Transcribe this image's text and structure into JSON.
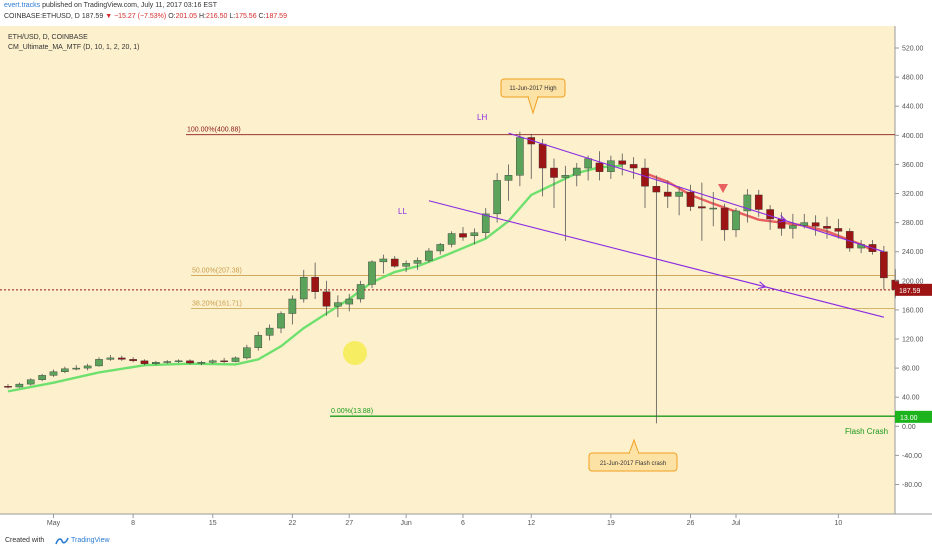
{
  "header": {
    "author": "evert.tracks",
    "published_text": "published on TradingView.com, July 11, 2017 03:16 EST",
    "symbol": "COINBASE:ETHUSD, D",
    "last": "187.59",
    "change": "−15.27 (−7.53%)",
    "o_label": "O:",
    "o": "201.05",
    "h_label": "H:",
    "h": "216.50",
    "l_label": "L:",
    "l": "175.56",
    "c_label": "C:",
    "c": "187.59"
  },
  "legend": {
    "line1": "ETH/USD, D, COINBASE",
    "line2": "CM_Ultimate_MA_MTF (D, 10, 1, 2, 20, 1)"
  },
  "colors": {
    "background": "#fdf0cd",
    "up": "#5ba35b",
    "down": "#9c1414",
    "ma_up": "#6ee06e",
    "ma_down": "#e86060",
    "channel": "#8a2be2",
    "fib_100": "#8b1a1a",
    "fib_50": "#c8a050",
    "fib_0": "#1a9a1a",
    "price_line": "#9c1414"
  },
  "annotations": {
    "high_callout": "11-Jun-2017 High",
    "crash_callout": "21-Jun-2017 Flash crash",
    "lh": "LH",
    "ll": "LL",
    "flash_crash": "Flash Crash"
  },
  "footer": {
    "created": "Created with",
    "brand": "TradingView"
  },
  "chart_data": {
    "type": "candlestick",
    "x_axis": {
      "ticks": [
        {
          "i": 4,
          "label": "May"
        },
        {
          "i": 11,
          "label": "8"
        },
        {
          "i": 18,
          "label": "15"
        },
        {
          "i": 25,
          "label": "22"
        },
        {
          "i": 30,
          "label": "27"
        },
        {
          "i": 35,
          "label": "Jun"
        },
        {
          "i": 40,
          "label": "6"
        },
        {
          "i": 46,
          "label": "12"
        },
        {
          "i": 53,
          "label": "19"
        },
        {
          "i": 60,
          "label": "26"
        },
        {
          "i": 64,
          "label": "Jul"
        },
        {
          "i": 73,
          "label": "10"
        }
      ]
    },
    "y_axis": {
      "ticks": [
        520,
        480,
        440,
        400,
        360,
        320,
        280,
        240,
        200,
        160,
        120,
        80,
        40,
        0,
        -40,
        -80
      ],
      "labels": [
        "520.00",
        "480.00",
        "440.00",
        "400.00",
        "360.00",
        "320.00",
        "280.00",
        "240.00",
        "200.00",
        "160.00",
        "120.00",
        "80.00",
        "40.00",
        "0.00",
        "-40.00",
        "-80.00"
      ],
      "range": [
        -82,
        550
      ]
    },
    "fib_levels": [
      {
        "label": "100.00%(400.88)",
        "value": 400.88
      },
      {
        "label": "50.00%(207.38)",
        "value": 207.38
      },
      {
        "label": "38.20%(161.71)",
        "value": 161.71
      },
      {
        "label": "0.00%(13.88)",
        "value": 13.88
      }
    ],
    "last_price": {
      "value": 187.59,
      "label": "187.59"
    },
    "flash_crash_level": {
      "value": 13.0,
      "label": "13.00"
    },
    "channel_lines": [
      {
        "name": "upper",
        "from": [
          44,
          403
        ],
        "to": [
          77,
          240
        ]
      },
      {
        "name": "lower",
        "from": [
          37,
          310
        ],
        "to": [
          77,
          150
        ]
      }
    ],
    "ohlc": [
      [
        55,
        58,
        52,
        54
      ],
      [
        54,
        60,
        53,
        58
      ],
      [
        58,
        66,
        56,
        64
      ],
      [
        64,
        72,
        62,
        70
      ],
      [
        70,
        78,
        68,
        75
      ],
      [
        75,
        82,
        73,
        79
      ],
      [
        79,
        84,
        77,
        80
      ],
      [
        80,
        86,
        77,
        83
      ],
      [
        83,
        95,
        82,
        92
      ],
      [
        92,
        98,
        90,
        94
      ],
      [
        94,
        97,
        90,
        92
      ],
      [
        92,
        95,
        88,
        90
      ],
      [
        90,
        92,
        84,
        86
      ],
      [
        86,
        90,
        84,
        88
      ],
      [
        88,
        91,
        86,
        89
      ],
      [
        89,
        92,
        87,
        90
      ],
      [
        90,
        92,
        85,
        87
      ],
      [
        87,
        90,
        84,
        88
      ],
      [
        88,
        92,
        86,
        90
      ],
      [
        90,
        94,
        87,
        89
      ],
      [
        89,
        96,
        88,
        94
      ],
      [
        94,
        112,
        92,
        108
      ],
      [
        108,
        130,
        104,
        125
      ],
      [
        125,
        140,
        118,
        135
      ],
      [
        135,
        158,
        128,
        155
      ],
      [
        155,
        180,
        140,
        175
      ],
      [
        175,
        215,
        170,
        205
      ],
      [
        205,
        225,
        175,
        185
      ],
      [
        185,
        200,
        152,
        165
      ],
      [
        165,
        180,
        150,
        170
      ],
      [
        168,
        182,
        158,
        175
      ],
      [
        175,
        200,
        170,
        195
      ],
      [
        195,
        228,
        190,
        226
      ],
      [
        226,
        236,
        210,
        230
      ],
      [
        230,
        234,
        218,
        220
      ],
      [
        220,
        228,
        212,
        224
      ],
      [
        224,
        232,
        215,
        228
      ],
      [
        228,
        245,
        225,
        241
      ],
      [
        241,
        252,
        236,
        250
      ],
      [
        250,
        268,
        246,
        265
      ],
      [
        265,
        274,
        255,
        260
      ],
      [
        262,
        272,
        250,
        266
      ],
      [
        266,
        300,
        258,
        292
      ],
      [
        292,
        348,
        280,
        338
      ],
      [
        338,
        360,
        310,
        345
      ],
      [
        345,
        405,
        330,
        397
      ],
      [
        397,
        402,
        340,
        388
      ],
      [
        388,
        395,
        316,
        355
      ],
      [
        355,
        368,
        300,
        342
      ],
      [
        342,
        358,
        255,
        345
      ],
      [
        345,
        362,
        330,
        355
      ],
      [
        355,
        372,
        338,
        368
      ],
      [
        362,
        378,
        338,
        350
      ],
      [
        350,
        372,
        340,
        365
      ],
      [
        365,
        375,
        345,
        360
      ],
      [
        360,
        370,
        340,
        355
      ],
      [
        355,
        368,
        300,
        330
      ],
      [
        330,
        345,
        4,
        322
      ],
      [
        322,
        338,
        300,
        316
      ],
      [
        316,
        330,
        290,
        322
      ],
      [
        322,
        332,
        296,
        302
      ],
      [
        302,
        335,
        255,
        300
      ],
      [
        300,
        322,
        275,
        300
      ],
      [
        300,
        306,
        255,
        270
      ],
      [
        270,
        300,
        260,
        296
      ],
      [
        296,
        326,
        280,
        318
      ],
      [
        318,
        325,
        288,
        298
      ],
      [
        298,
        304,
        270,
        285
      ],
      [
        285,
        294,
        262,
        272
      ],
      [
        272,
        292,
        258,
        276
      ],
      [
        276,
        292,
        272,
        280
      ],
      [
        280,
        290,
        262,
        275
      ],
      [
        275,
        288,
        258,
        272
      ],
      [
        272,
        285,
        258,
        268
      ],
      [
        268,
        272,
        240,
        245
      ],
      [
        245,
        256,
        238,
        250
      ],
      [
        250,
        256,
        236,
        240
      ],
      [
        240,
        248,
        188,
        204
      ],
      [
        201,
        216,
        176,
        188
      ]
    ],
    "ma": [
      [
        0,
        48
      ],
      [
        4,
        60
      ],
      [
        8,
        74
      ],
      [
        12,
        84
      ],
      [
        16,
        86
      ],
      [
        20,
        85
      ],
      [
        22,
        92
      ],
      [
        24,
        110
      ],
      [
        26,
        135
      ],
      [
        28,
        155
      ],
      [
        30,
        175
      ],
      [
        32,
        198
      ],
      [
        34,
        212
      ],
      [
        36,
        220
      ],
      [
        38,
        232
      ],
      [
        40,
        245
      ],
      [
        42,
        258
      ],
      [
        44,
        282
      ],
      [
        46,
        318
      ],
      [
        48,
        333
      ],
      [
        50,
        348
      ],
      [
        52,
        356
      ],
      [
        54,
        358
      ],
      [
        56,
        348
      ],
      [
        58,
        336
      ],
      [
        60,
        318
      ],
      [
        62,
        306
      ],
      [
        64,
        295
      ],
      [
        66,
        284
      ],
      [
        68,
        280
      ],
      [
        70,
        276
      ],
      [
        72,
        268
      ],
      [
        74,
        256
      ],
      [
        75,
        250
      ],
      [
        76,
        242
      ]
    ],
    "ma_down_from": 55
  }
}
